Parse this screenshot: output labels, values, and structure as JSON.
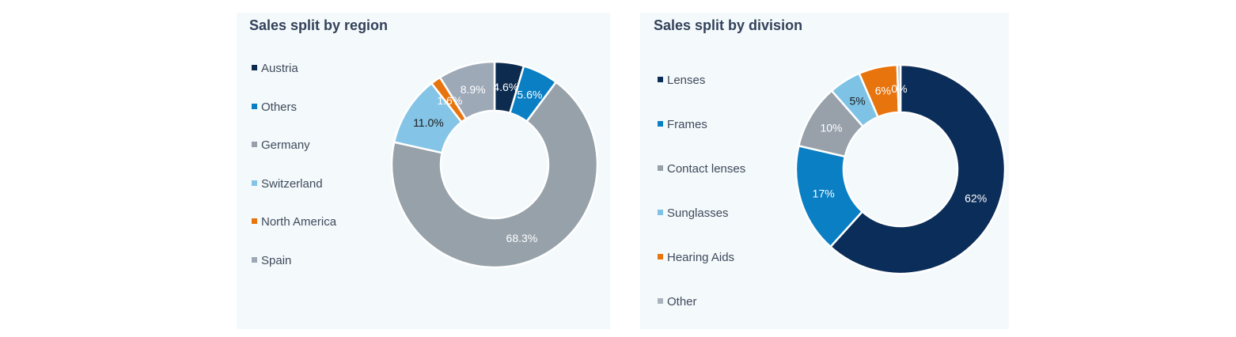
{
  "chart_data": [
    {
      "type": "pie",
      "donut": true,
      "title": "Sales split by region",
      "legend_position": "left",
      "categories": [
        "Austria",
        "Others",
        "Germany",
        "Switzerland",
        "North America",
        "Spain"
      ],
      "values": [
        4.6,
        5.6,
        68.3,
        11.0,
        1.6,
        8.9
      ],
      "data_labels": [
        "4.6%",
        "5.6%",
        "68.3%",
        "11.0%",
        "1.6%",
        "8.9%"
      ],
      "colors": [
        "#0d2b4e",
        "#0b7fc4",
        "#97a1aa",
        "#84c4e6",
        "#e8740d",
        "#9ea9b8"
      ],
      "label_colors": [
        "#ffffff",
        "#ffffff",
        "#ffffff",
        "#1a1a1a",
        "#ffffff",
        "#ffffff"
      ]
    },
    {
      "type": "pie",
      "donut": true,
      "title": "Sales split by division",
      "legend_position": "left",
      "categories": [
        "Lenses",
        "Frames",
        "Contact lenses",
        "Sunglasses",
        "Hearing Aids",
        "Other"
      ],
      "values": [
        62,
        17,
        10,
        5,
        6,
        0.5
      ],
      "data_labels": [
        "62%",
        "17%",
        "10%",
        "5%",
        "6%",
        "0%"
      ],
      "colors": [
        "#0b2d59",
        "#0b7fc4",
        "#98a1aa",
        "#7ec3e6",
        "#e8740d",
        "#a9b3bd"
      ],
      "label_colors": [
        "#ffffff",
        "#ffffff",
        "#ffffff",
        "#1a1a1a",
        "#ffffff",
        "#ffffff"
      ]
    }
  ]
}
